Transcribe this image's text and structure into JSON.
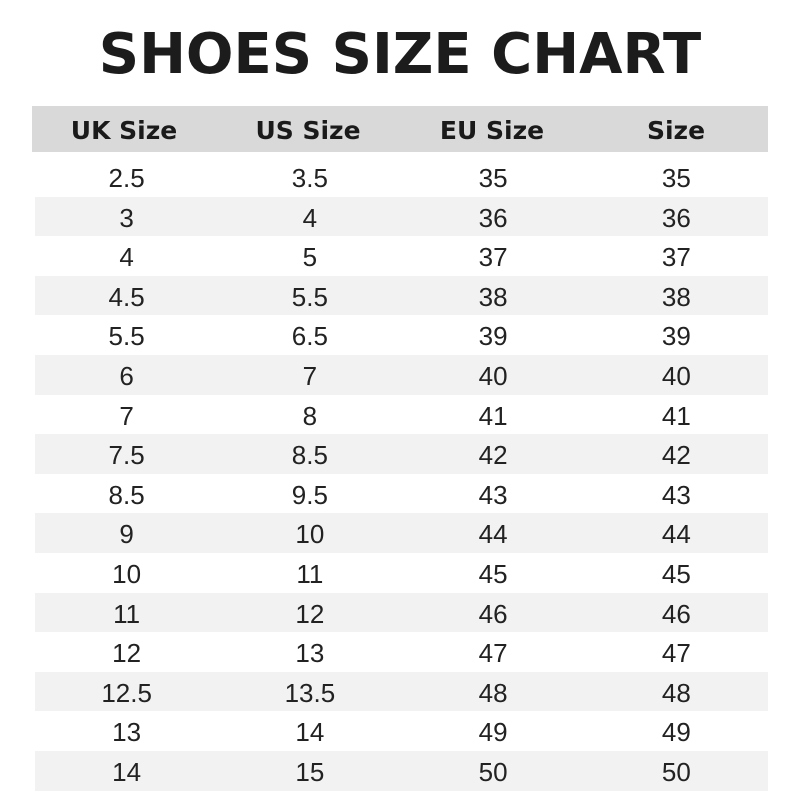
{
  "chart_data": {
    "type": "table",
    "title": "SHOES SIZE CHART",
    "columns": [
      "UK Size",
      "US Size",
      "EU Size",
      "Size"
    ],
    "rows": [
      [
        "2.5",
        "3.5",
        "35",
        "35"
      ],
      [
        "3",
        "4",
        "36",
        "36"
      ],
      [
        "4",
        "5",
        "37",
        "37"
      ],
      [
        "4.5",
        "5.5",
        "38",
        "38"
      ],
      [
        "5.5",
        "6.5",
        "39",
        "39"
      ],
      [
        "6",
        "7",
        "40",
        "40"
      ],
      [
        "7",
        "8",
        "41",
        "41"
      ],
      [
        "7.5",
        "8.5",
        "42",
        "42"
      ],
      [
        "8.5",
        "9.5",
        "43",
        "43"
      ],
      [
        "9",
        "10",
        "44",
        "44"
      ],
      [
        "10",
        "11",
        "45",
        "45"
      ],
      [
        "11",
        "12",
        "46",
        "46"
      ],
      [
        "12",
        "13",
        "47",
        "47"
      ],
      [
        "12.5",
        "13.5",
        "48",
        "48"
      ],
      [
        "13",
        "14",
        "49",
        "49"
      ],
      [
        "14",
        "15",
        "50",
        "50"
      ]
    ],
    "colors": {
      "header_bg": "#d9d9d9",
      "stripe_bg": "#f2f2f2",
      "text": "#1a1a1a"
    }
  }
}
